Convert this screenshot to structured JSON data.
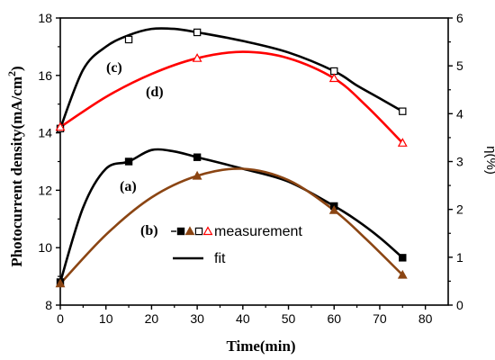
{
  "chart_data": {
    "type": "line",
    "xlabel": "Time(min)",
    "ylabel": "Photocurrent density",
    "ylabel_unit": "(mA/cm",
    "ylabel_sup": "2",
    "ylabel_close": ")",
    "y2label": "η(%)",
    "xlim": [
      0,
      85
    ],
    "ylim": [
      8,
      18
    ],
    "y2lim": [
      0,
      6
    ],
    "xticks": [
      "0",
      "10",
      "20",
      "30",
      "40",
      "50",
      "60",
      "70",
      "80"
    ],
    "yticks": [
      "8",
      "10",
      "12",
      "14",
      "16",
      "18"
    ],
    "y2ticks": [
      "0",
      "1",
      "2",
      "3",
      "4",
      "5",
      "6"
    ],
    "series": [
      {
        "label": "(a)",
        "axis": "left",
        "color": "#000000",
        "marker": "filled-square",
        "marker_color": "#000000",
        "x": [
          0,
          15,
          30,
          60,
          75
        ],
        "y": [
          8.8,
          13.0,
          13.15,
          11.45,
          9.65
        ],
        "fit": [
          [
            0,
            8.8
          ],
          [
            5,
            11.4
          ],
          [
            10,
            12.75
          ],
          [
            15,
            13.0
          ],
          [
            20,
            13.4
          ],
          [
            25,
            13.35
          ],
          [
            30,
            13.15
          ],
          [
            40,
            12.75
          ],
          [
            50,
            12.3
          ],
          [
            60,
            11.45
          ],
          [
            65,
            10.95
          ],
          [
            70,
            10.35
          ],
          [
            75,
            9.65
          ]
        ]
      },
      {
        "label": "(b)",
        "axis": "left",
        "color": "#8B4513",
        "marker": "filled-triangle",
        "marker_color": "#8B4513",
        "x": [
          0,
          30,
          60,
          75
        ],
        "y": [
          8.75,
          12.5,
          11.3,
          9.05
        ],
        "fit": [
          [
            0,
            8.75
          ],
          [
            10,
            10.45
          ],
          [
            20,
            11.75
          ],
          [
            30,
            12.5
          ],
          [
            40,
            12.75
          ],
          [
            50,
            12.35
          ],
          [
            60,
            11.3
          ],
          [
            67,
            10.3
          ],
          [
            75,
            9.05
          ]
        ]
      },
      {
        "label": "(c)",
        "axis": "left",
        "color": "#000000",
        "marker": "open-square",
        "marker_color": "#000000",
        "x": [
          0,
          15,
          30,
          60,
          75
        ],
        "y": [
          14.15,
          17.25,
          17.5,
          16.15,
          14.75
        ],
        "fit": [
          [
            0,
            14.15
          ],
          [
            5,
            16.2
          ],
          [
            10,
            17.0
          ],
          [
            15,
            17.4
          ],
          [
            20,
            17.62
          ],
          [
            25,
            17.62
          ],
          [
            30,
            17.5
          ],
          [
            40,
            17.2
          ],
          [
            50,
            16.8
          ],
          [
            60,
            16.15
          ],
          [
            65,
            15.65
          ],
          [
            70,
            15.2
          ],
          [
            75,
            14.75
          ]
        ]
      },
      {
        "label": "(d)",
        "axis": "left",
        "color": "#ff0000",
        "marker": "open-triangle",
        "marker_color": "#ff0000",
        "x": [
          0,
          30,
          60,
          75
        ],
        "y": [
          14.2,
          16.6,
          15.9,
          13.65
        ],
        "fit": [
          [
            0,
            14.2
          ],
          [
            10,
            15.25
          ],
          [
            20,
            16.05
          ],
          [
            30,
            16.6
          ],
          [
            40,
            16.82
          ],
          [
            50,
            16.6
          ],
          [
            60,
            15.9
          ],
          [
            67,
            14.95
          ],
          [
            75,
            13.65
          ]
        ]
      }
    ],
    "legend": {
      "position": "center-right",
      "measurement_label": "measurement",
      "fit_label": "fit"
    }
  }
}
